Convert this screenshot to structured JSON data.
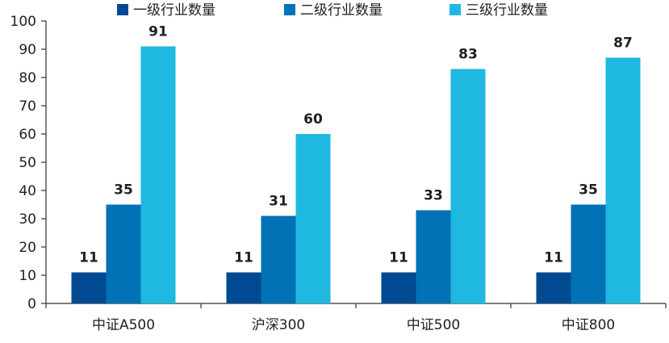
{
  "chart_data": {
    "type": "bar",
    "title": "",
    "xlabel": "",
    "ylabel": "",
    "categories": [
      "中证A500",
      "沪深300",
      "中证500",
      "中证800"
    ],
    "series": [
      {
        "name": "一级行业数量",
        "color": "#004a91",
        "values": [
          11,
          11,
          11,
          11
        ]
      },
      {
        "name": "二级行业数量",
        "color": "#0072b5",
        "values": [
          35,
          31,
          33,
          35
        ]
      },
      {
        "name": "三级行业数量",
        "color": "#1fb8e0",
        "values": [
          91,
          60,
          83,
          87
        ]
      }
    ],
    "ylim": [
      0,
      100
    ],
    "yticks": [
      0,
      10,
      20,
      30,
      40,
      50,
      60,
      70,
      80,
      90,
      100
    ],
    "legend_position": "top",
    "grid": false,
    "data_labels": true
  }
}
